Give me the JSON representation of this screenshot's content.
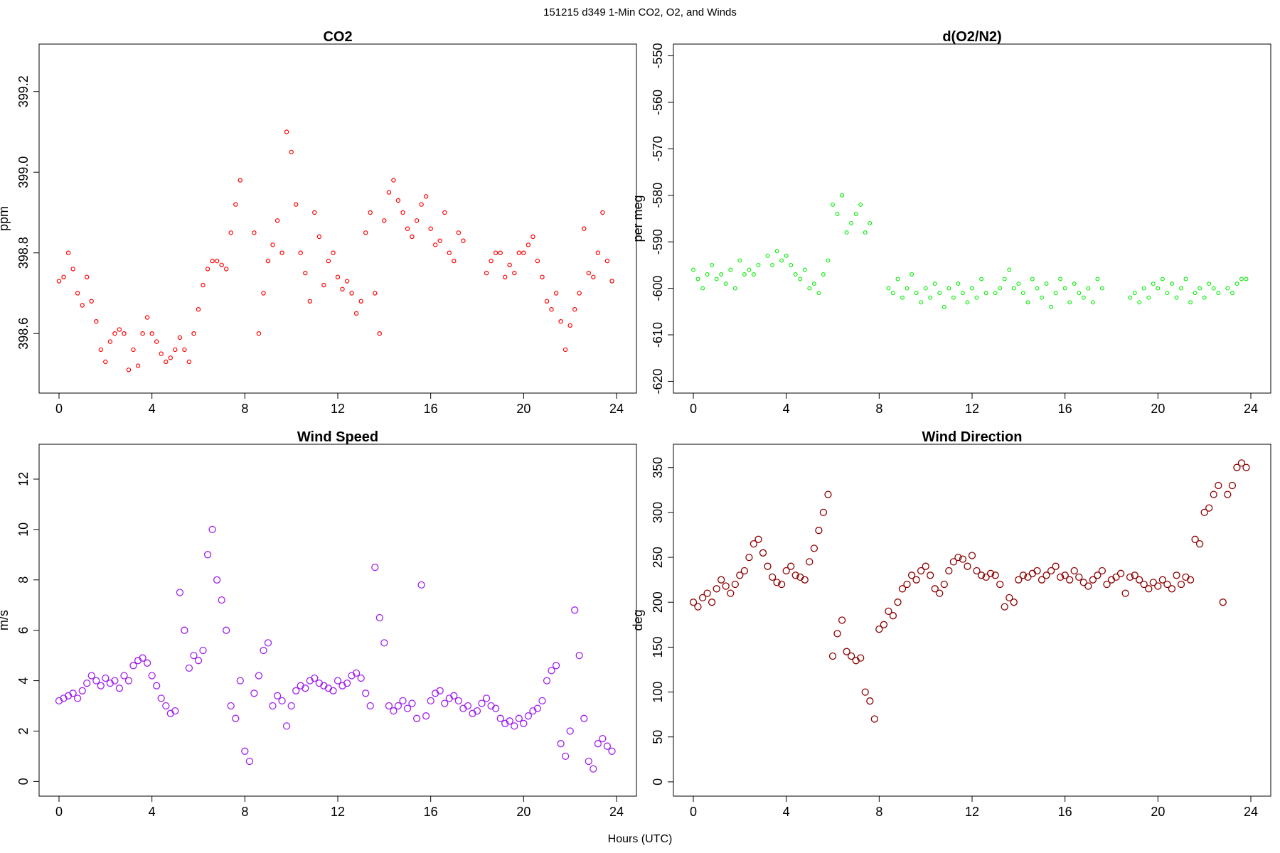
{
  "figure": {
    "title": "151215   d349   1-Min CO2, O2, and Winds",
    "xlabel": "Hours (UTC)"
  },
  "chart_data": [
    {
      "id": "co2",
      "type": "scatter",
      "title": "CO2",
      "xlabel": "",
      "ylabel": "ppm",
      "xlim": [
        0,
        24
      ],
      "ylim": [
        398.47,
        399.3
      ],
      "xticks": [
        0,
        4,
        8,
        12,
        16,
        20,
        24
      ],
      "yticks": [
        398.6,
        398.8,
        399.0,
        399.2
      ],
      "ytick_labels": [
        "398.6",
        "398.8",
        "399.0",
        "399.2"
      ],
      "color": "#ff0000",
      "series": [
        {
          "x": [
            0.0,
            0.2,
            0.4,
            0.6,
            0.8,
            1.0,
            1.2,
            1.4,
            1.6,
            1.8,
            2.0,
            2.2,
            2.4,
            2.6,
            2.8,
            3.0,
            3.2,
            3.4,
            3.6,
            3.8,
            4.0,
            4.2,
            4.4,
            4.6,
            4.8,
            5.0,
            5.2,
            5.4,
            5.6,
            5.8,
            6.0,
            6.2,
            6.4,
            6.6,
            6.8,
            7.0,
            7.2,
            7.4,
            7.6,
            7.8,
            8.4,
            8.6,
            8.8,
            9.0,
            9.2,
            9.4,
            9.6,
            9.8,
            10.0,
            10.2,
            10.4,
            10.6,
            10.8,
            11.0,
            11.2,
            11.4,
            11.6,
            11.8,
            12.0,
            12.2,
            12.4,
            12.6,
            12.8,
            13.0,
            13.2,
            13.4,
            13.6,
            13.8,
            14.0,
            14.2,
            14.4,
            14.6,
            14.8,
            15.0,
            15.2,
            15.4,
            15.6,
            15.8,
            16.0,
            16.2,
            16.4,
            16.6,
            16.8,
            17.0,
            17.2,
            17.4,
            18.4,
            18.6,
            18.8,
            19.0,
            19.2,
            19.4,
            19.6,
            19.8,
            20.0,
            20.2,
            20.4,
            20.6,
            20.8,
            21.0,
            21.2,
            21.4,
            21.6,
            21.8,
            22.0,
            22.2,
            22.4,
            22.6,
            22.8,
            23.0,
            23.2,
            23.4,
            23.6,
            23.8
          ],
          "y": [
            398.73,
            398.74,
            398.8,
            398.76,
            398.7,
            398.67,
            398.74,
            398.68,
            398.63,
            398.56,
            398.53,
            398.58,
            398.6,
            398.61,
            398.6,
            398.51,
            398.56,
            398.52,
            398.6,
            398.64,
            398.6,
            398.58,
            398.55,
            398.53,
            398.54,
            398.56,
            398.59,
            398.56,
            398.53,
            398.6,
            398.66,
            398.72,
            398.76,
            398.78,
            398.78,
            398.77,
            398.76,
            398.85,
            398.92,
            398.98,
            398.85,
            398.6,
            398.7,
            398.78,
            398.82,
            398.88,
            398.8,
            399.1,
            399.05,
            398.92,
            398.8,
            398.75,
            398.68,
            398.9,
            398.84,
            398.72,
            398.78,
            398.8,
            398.74,
            398.71,
            398.73,
            398.7,
            398.65,
            398.68,
            398.85,
            398.9,
            398.7,
            398.6,
            398.88,
            398.95,
            398.98,
            398.93,
            398.9,
            398.86,
            398.84,
            398.88,
            398.92,
            398.94,
            398.86,
            398.82,
            398.83,
            398.9,
            398.8,
            398.78,
            398.85,
            398.83,
            398.75,
            398.78,
            398.8,
            398.8,
            398.74,
            398.77,
            398.75,
            398.8,
            398.8,
            398.82,
            398.84,
            398.78,
            398.74,
            398.68,
            398.66,
            398.7,
            398.63,
            398.56,
            398.62,
            398.66,
            398.7,
            398.86,
            398.75,
            398.74,
            398.8,
            398.9,
            398.78,
            398.73
          ]
        }
      ]
    },
    {
      "id": "o2",
      "type": "scatter",
      "title": "d(O2/N2)",
      "xlabel": "",
      "ylabel": "per meg",
      "xlim": [
        0,
        24
      ],
      "ylim": [
        -621,
        -549
      ],
      "xticks": [
        0,
        4,
        8,
        12,
        16,
        20,
        24
      ],
      "yticks": [
        -620,
        -610,
        -600,
        -590,
        -580,
        -570,
        -560,
        -550
      ],
      "ytick_labels": [
        "-620",
        "-610",
        "-600",
        "-590",
        "-580",
        "-570",
        "-560",
        "-550"
      ],
      "color": "#00ee00",
      "series": [
        {
          "x": [
            0.0,
            0.2,
            0.4,
            0.6,
            0.8,
            1.0,
            1.2,
            1.4,
            1.6,
            1.8,
            2.0,
            2.2,
            2.4,
            2.6,
            2.8,
            3.2,
            3.4,
            3.6,
            3.8,
            4.0,
            4.2,
            4.4,
            4.6,
            4.8,
            5.0,
            5.2,
            5.4,
            5.6,
            5.8,
            6.0,
            6.2,
            6.4,
            6.6,
            6.8,
            7.0,
            7.2,
            7.4,
            7.6,
            8.4,
            8.6,
            8.8,
            9.0,
            9.2,
            9.4,
            9.6,
            9.8,
            10.0,
            10.2,
            10.4,
            10.6,
            10.8,
            11.0,
            11.2,
            11.4,
            11.6,
            11.8,
            12.0,
            12.2,
            12.4,
            12.6,
            13.0,
            13.2,
            13.4,
            13.6,
            13.8,
            14.0,
            14.2,
            14.4,
            14.6,
            14.8,
            15.0,
            15.2,
            15.4,
            15.6,
            15.8,
            16.0,
            16.2,
            16.4,
            16.6,
            16.8,
            17.0,
            17.2,
            17.4,
            17.6,
            18.8,
            19.0,
            19.2,
            19.4,
            19.6,
            19.8,
            20.0,
            20.2,
            20.4,
            20.6,
            20.8,
            21.0,
            21.2,
            21.4,
            21.6,
            21.8,
            22.0,
            22.2,
            22.4,
            22.6,
            23.0,
            23.2,
            23.4,
            23.6,
            23.8
          ],
          "y": [
            -596,
            -598,
            -600,
            -597,
            -595,
            -598,
            -597,
            -599,
            -596,
            -600,
            -594,
            -597,
            -596,
            -597,
            -595,
            -593,
            -595,
            -592,
            -594,
            -593,
            -595,
            -597,
            -598,
            -596,
            -600,
            -599,
            -601,
            -597,
            -594,
            -582,
            -584,
            -580,
            -588,
            -586,
            -584,
            -582,
            -588,
            -586,
            -600,
            -601,
            -598,
            -602,
            -600,
            -597,
            -601,
            -603,
            -600,
            -602,
            -599,
            -601,
            -604,
            -600,
            -602,
            -599,
            -601,
            -603,
            -600,
            -602,
            -598,
            -601,
            -601,
            -600,
            -598,
            -596,
            -600,
            -599,
            -601,
            -603,
            -598,
            -600,
            -602,
            -599,
            -604,
            -601,
            -598,
            -600,
            -603,
            -599,
            -601,
            -602,
            -600,
            -603,
            -598,
            -600,
            -602,
            -601,
            -603,
            -600,
            -602,
            -599,
            -600,
            -598,
            -601,
            -599,
            -602,
            -600,
            -598,
            -603,
            -601,
            -600,
            -602,
            -599,
            -600,
            -601,
            -600,
            -601,
            -599,
            -598,
            -598
          ]
        }
      ]
    },
    {
      "id": "wind-speed",
      "type": "scatter",
      "title": "Wind Speed",
      "xlabel": "",
      "ylabel": "m/s",
      "xlim": [
        0,
        24
      ],
      "ylim": [
        -0.3,
        13.1
      ],
      "xticks": [
        0,
        4,
        8,
        12,
        16,
        20,
        24
      ],
      "yticks": [
        0,
        2,
        4,
        6,
        8,
        10,
        12
      ],
      "ytick_labels": [
        "0",
        "2",
        "4",
        "6",
        "8",
        "10",
        "12"
      ],
      "color": "#a020f0",
      "series": [
        {
          "x": [
            0.0,
            0.2,
            0.4,
            0.6,
            0.8,
            1.0,
            1.2,
            1.4,
            1.6,
            1.8,
            2.0,
            2.2,
            2.4,
            2.6,
            2.8,
            3.0,
            3.2,
            3.4,
            3.6,
            3.8,
            4.0,
            4.2,
            4.4,
            4.6,
            4.8,
            5.0,
            5.2,
            5.4,
            5.6,
            5.8,
            6.0,
            6.2,
            6.4,
            6.6,
            6.8,
            7.0,
            7.2,
            7.4,
            7.6,
            7.8,
            8.0,
            8.2,
            8.4,
            8.6,
            8.8,
            9.0,
            9.2,
            9.4,
            9.6,
            9.8,
            10.0,
            10.2,
            10.4,
            10.6,
            10.8,
            11.0,
            11.2,
            11.4,
            11.6,
            11.8,
            12.0,
            12.2,
            12.4,
            12.6,
            12.8,
            13.0,
            13.2,
            13.4,
            13.6,
            13.8,
            14.0,
            14.2,
            14.4,
            14.6,
            14.8,
            15.0,
            15.2,
            15.4,
            15.6,
            15.8,
            16.0,
            16.2,
            16.4,
            16.6,
            16.8,
            17.0,
            17.2,
            17.4,
            17.6,
            17.8,
            18.0,
            18.2,
            18.4,
            18.6,
            18.8,
            19.0,
            19.2,
            19.4,
            19.6,
            19.8,
            20.0,
            20.2,
            20.4,
            20.6,
            20.8,
            21.0,
            21.2,
            21.4,
            21.6,
            21.8,
            22.0,
            22.2,
            22.4,
            22.6,
            22.8,
            23.0,
            23.2,
            23.4,
            23.6,
            23.8
          ],
          "y": [
            3.2,
            3.3,
            3.4,
            3.5,
            3.3,
            3.6,
            3.9,
            4.2,
            4.0,
            3.8,
            4.1,
            3.9,
            4.0,
            3.7,
            4.2,
            4.0,
            4.6,
            4.8,
            4.9,
            4.7,
            4.2,
            3.8,
            3.3,
            3.0,
            2.7,
            2.8,
            7.5,
            6.0,
            4.5,
            5.0,
            4.8,
            5.2,
            9.0,
            10.0,
            8.0,
            7.2,
            6.0,
            3.0,
            2.5,
            4.0,
            1.2,
            0.8,
            3.5,
            4.2,
            5.2,
            5.5,
            3.0,
            3.4,
            3.2,
            2.2,
            3.0,
            3.6,
            3.8,
            3.7,
            4.0,
            4.1,
            3.9,
            3.8,
            3.7,
            3.6,
            4.0,
            3.8,
            3.9,
            4.2,
            4.3,
            4.1,
            3.5,
            3.0,
            8.5,
            6.5,
            5.5,
            3.0,
            2.8,
            3.0,
            3.2,
            2.9,
            3.1,
            2.5,
            7.8,
            2.6,
            3.2,
            3.5,
            3.6,
            3.1,
            3.3,
            3.4,
            3.2,
            2.9,
            3.0,
            2.7,
            2.8,
            3.1,
            3.3,
            3.0,
            2.9,
            2.5,
            2.3,
            2.4,
            2.2,
            2.5,
            2.3,
            2.6,
            2.8,
            2.9,
            3.2,
            4.0,
            4.4,
            4.6,
            1.5,
            1.0,
            2.0,
            6.8,
            5.0,
            2.5,
            0.8,
            0.5,
            1.5,
            1.7,
            1.4,
            1.2
          ]
        }
      ]
    },
    {
      "id": "wind-direction",
      "type": "scatter",
      "title": "Wind Direction",
      "xlabel": "",
      "ylabel": "deg",
      "xlim": [
        0,
        24
      ],
      "ylim": [
        -8,
        368
      ],
      "xticks": [
        0,
        4,
        8,
        12,
        16,
        20,
        24
      ],
      "yticks": [
        0,
        50,
        100,
        150,
        200,
        250,
        300,
        350
      ],
      "ytick_labels": [
        "0",
        "50",
        "100",
        "150",
        "200",
        "250",
        "300",
        "350"
      ],
      "color": "#8b0000",
      "series": [
        {
          "x": [
            0.0,
            0.2,
            0.4,
            0.6,
            0.8,
            1.0,
            1.2,
            1.4,
            1.6,
            1.8,
            2.0,
            2.2,
            2.4,
            2.6,
            2.8,
            3.0,
            3.2,
            3.4,
            3.6,
            3.8,
            4.0,
            4.2,
            4.4,
            4.6,
            4.8,
            5.0,
            5.2,
            5.4,
            5.6,
            5.8,
            6.0,
            6.2,
            6.4,
            6.6,
            6.8,
            7.0,
            7.2,
            7.4,
            7.6,
            7.8,
            8.0,
            8.2,
            8.4,
            8.6,
            8.8,
            9.0,
            9.2,
            9.4,
            9.6,
            9.8,
            10.0,
            10.2,
            10.4,
            10.6,
            10.8,
            11.0,
            11.2,
            11.4,
            11.6,
            11.8,
            12.0,
            12.2,
            12.4,
            12.6,
            12.8,
            13.0,
            13.2,
            13.4,
            13.6,
            13.8,
            14.0,
            14.2,
            14.4,
            14.6,
            14.8,
            15.0,
            15.2,
            15.4,
            15.6,
            15.8,
            16.0,
            16.2,
            16.4,
            16.6,
            16.8,
            17.0,
            17.2,
            17.4,
            17.6,
            17.8,
            18.0,
            18.2,
            18.4,
            18.6,
            18.8,
            19.0,
            19.2,
            19.4,
            19.6,
            19.8,
            20.0,
            20.2,
            20.4,
            20.6,
            20.8,
            21.0,
            21.2,
            21.4,
            21.6,
            21.8,
            22.0,
            22.2,
            22.4,
            22.6,
            22.8,
            23.0,
            23.2,
            23.4,
            23.6,
            23.8
          ],
          "y": [
            200,
            195,
            205,
            210,
            200,
            215,
            225,
            218,
            210,
            220,
            230,
            235,
            250,
            265,
            270,
            255,
            240,
            228,
            222,
            220,
            235,
            240,
            230,
            228,
            225,
            245,
            260,
            280,
            300,
            320,
            140,
            165,
            180,
            145,
            140,
            135,
            138,
            100,
            90,
            70,
            170,
            175,
            190,
            185,
            200,
            215,
            220,
            230,
            225,
            235,
            240,
            230,
            215,
            210,
            220,
            235,
            245,
            250,
            248,
            240,
            252,
            235,
            230,
            228,
            232,
            230,
            220,
            195,
            205,
            200,
            225,
            230,
            228,
            232,
            235,
            225,
            230,
            235,
            240,
            228,
            230,
            225,
            235,
            228,
            222,
            218,
            225,
            230,
            235,
            220,
            225,
            228,
            232,
            210,
            228,
            230,
            225,
            220,
            215,
            222,
            218,
            225,
            220,
            215,
            230,
            220,
            228,
            225,
            270,
            265,
            300,
            305,
            320,
            330,
            200,
            320,
            330,
            350,
            355,
            350
          ]
        }
      ]
    }
  ]
}
